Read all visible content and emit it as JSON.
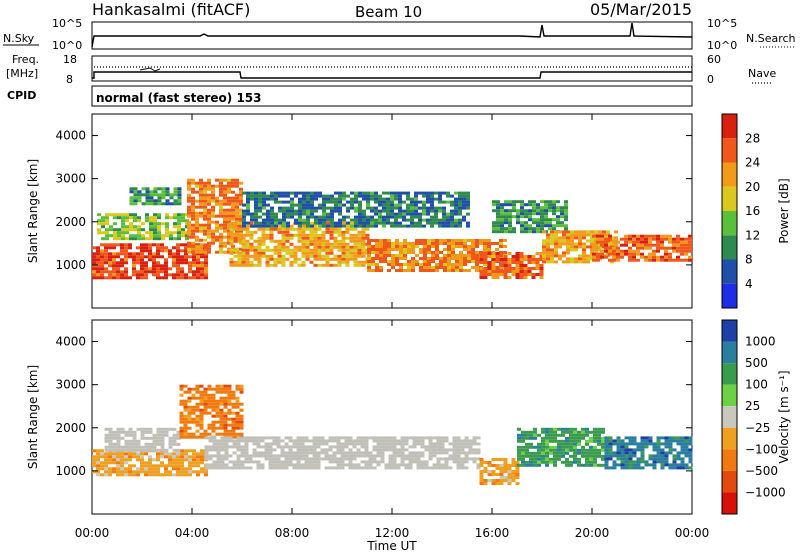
{
  "header": {
    "station": "Hankasalmi (fitACF)",
    "beam": "Beam 10",
    "date": "05/Mar/2015"
  },
  "noise_panel": {
    "left_label": "N.Sky",
    "right_label": "N.Search",
    "left_ticks": [
      "10^5",
      "10^0"
    ],
    "right_ticks": [
      "10^5",
      "10^0"
    ]
  },
  "freq_panel": {
    "left_label_top": "Freq.",
    "left_label_unit": "[MHz]",
    "left_ticks": [
      "18",
      "8"
    ],
    "right_label": "Nave",
    "right_ticks": [
      "60",
      "0"
    ]
  },
  "cpid_panel": {
    "label": "CPID",
    "mode_text": "normal (fast stereo) 153"
  },
  "colors": {
    "power_scale": [
      "#1e2ee6",
      "#1f4fa8",
      "#2f8a4f",
      "#5bbf3c",
      "#d9c91e",
      "#f29a1a",
      "#f0571a",
      "#d91f0f"
    ],
    "velocity_scale": [
      "#1e3fa8",
      "#2a7f9e",
      "#3a9a4e",
      "#6ed044",
      "#c8c8be",
      "#f0a020",
      "#f07a10",
      "#e34a0e",
      "#d8100a"
    ],
    "ground_scatter": "#c0c0b8"
  },
  "chart_data": [
    {
      "type": "heatmap",
      "title": "",
      "ylabel": "Slant Range [km]",
      "xlabel": "Time UT",
      "x_ticks": [
        "00:00",
        "04:00",
        "08:00",
        "12:00",
        "16:00",
        "20:00",
        "00:00"
      ],
      "xlim_hours": [
        0,
        24
      ],
      "ylim": [
        0,
        4500
      ],
      "y_ticks": [
        1000,
        2000,
        3000,
        4000
      ],
      "colorbar_label": "Power [dB]",
      "colorbar_ticks": [
        "4",
        "8",
        "12",
        "16",
        "20",
        "24",
        "28"
      ],
      "colorbar_range": [
        0,
        30
      ],
      "bands": [
        {
          "t_start": 0.0,
          "t_end": 4.5,
          "r_low": 700,
          "r_high": 1500,
          "level": 26
        },
        {
          "t_start": 0.2,
          "t_end": 3.8,
          "r_low": 1600,
          "r_high": 2200,
          "level": 14
        },
        {
          "t_start": 1.5,
          "t_end": 3.5,
          "r_low": 2400,
          "r_high": 2800,
          "level": 10
        },
        {
          "t_start": 3.8,
          "t_end": 6.0,
          "r_low": 1300,
          "r_high": 3000,
          "level": 22
        },
        {
          "t_start": 5.5,
          "t_end": 11.0,
          "r_low": 1000,
          "r_high": 2000,
          "level": 20
        },
        {
          "t_start": 6.0,
          "t_end": 15.0,
          "r_low": 1900,
          "r_high": 2700,
          "level": 8
        },
        {
          "t_start": 11.0,
          "t_end": 16.5,
          "r_low": 900,
          "r_high": 1600,
          "level": 22
        },
        {
          "t_start": 15.5,
          "t_end": 18.0,
          "r_low": 700,
          "r_high": 1300,
          "level": 24
        },
        {
          "t_start": 16.0,
          "t_end": 19.0,
          "r_low": 1800,
          "r_high": 2500,
          "level": 10
        },
        {
          "t_start": 18.0,
          "t_end": 21.0,
          "r_low": 1100,
          "r_high": 1800,
          "level": 20
        },
        {
          "t_start": 20.0,
          "t_end": 24.0,
          "r_low": 1100,
          "r_high": 1700,
          "level": 24
        }
      ]
    },
    {
      "type": "heatmap",
      "title": "",
      "ylabel": "Slant Range [km]",
      "xlabel": "Time UT",
      "x_ticks": [
        "00:00",
        "04:00",
        "08:00",
        "12:00",
        "16:00",
        "20:00",
        "00:00"
      ],
      "xlim_hours": [
        0,
        24
      ],
      "ylim": [
        0,
        4500
      ],
      "y_ticks": [
        1000,
        2000,
        3000,
        4000
      ],
      "colorbar_label": "Velocity [m s⁻¹]",
      "colorbar_ticks": [
        "1000",
        "500",
        "100",
        "25",
        "−25",
        "−100",
        "−500",
        "−1000"
      ],
      "bands": [
        {
          "t_start": 0.0,
          "t_end": 4.5,
          "r_low": 900,
          "r_high": 1500,
          "velocity": "-100"
        },
        {
          "t_start": 0.5,
          "t_end": 3.5,
          "r_low": 1500,
          "r_high": 2000,
          "velocity": "gs"
        },
        {
          "t_start": 3.5,
          "t_end": 6.0,
          "r_low": 1800,
          "r_high": 3000,
          "velocity": "-500"
        },
        {
          "t_start": 4.5,
          "t_end": 15.5,
          "r_low": 1100,
          "r_high": 1800,
          "velocity": "gs"
        },
        {
          "t_start": 15.5,
          "t_end": 17.0,
          "r_low": 700,
          "r_high": 1300,
          "velocity": "-100"
        },
        {
          "t_start": 17.0,
          "t_end": 20.5,
          "r_low": 1100,
          "r_high": 2000,
          "velocity": "100"
        },
        {
          "t_start": 20.5,
          "t_end": 24.0,
          "r_low": 1100,
          "r_high": 1800,
          "velocity": "500"
        }
      ]
    }
  ]
}
